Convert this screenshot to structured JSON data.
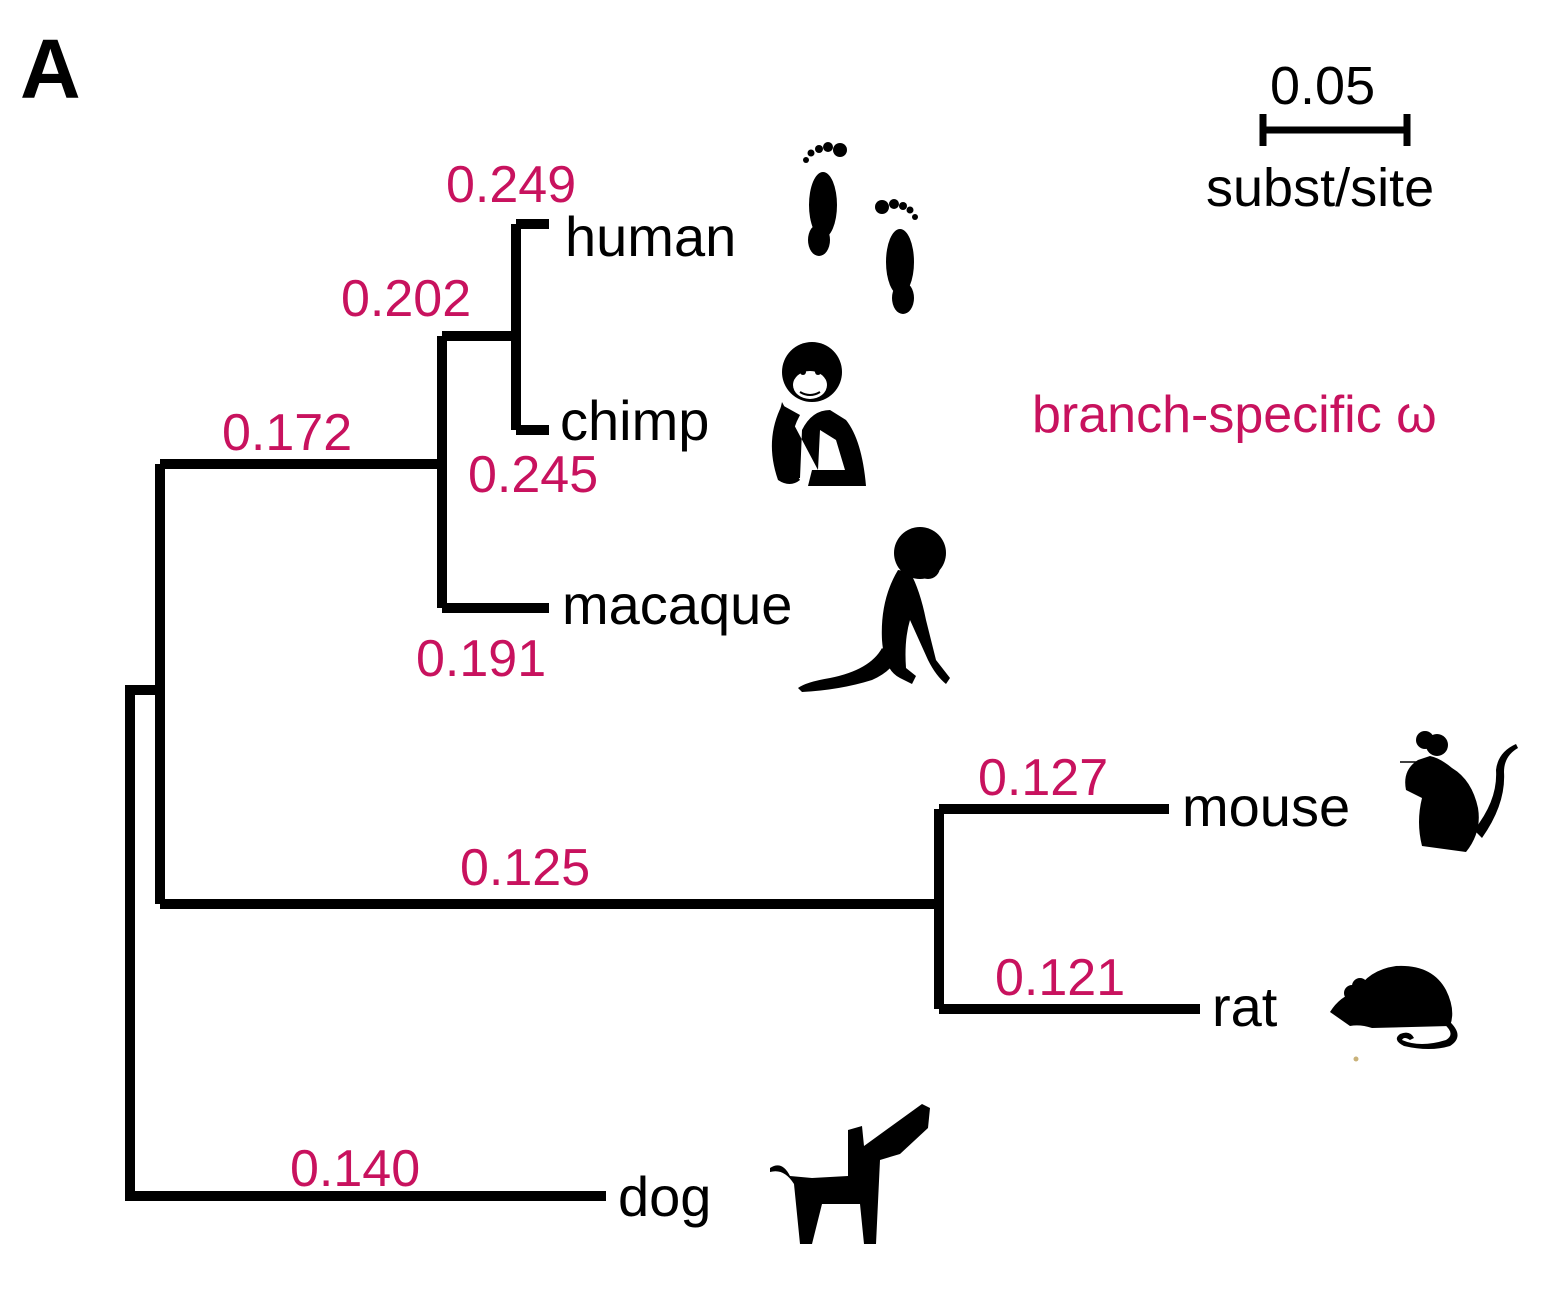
{
  "figure": {
    "panel_label": "A",
    "accent_color": "#c8125e",
    "legend": "branch-specific ω",
    "scale_bar": {
      "value": "0.05",
      "unit": "subst/site"
    }
  },
  "tree": {
    "taxa": [
      {
        "id": "human",
        "label": "human",
        "icon": "footprints-icon"
      },
      {
        "id": "chimp",
        "label": "chimp",
        "icon": "chimpanzee-icon"
      },
      {
        "id": "macaque",
        "label": "macaque",
        "icon": "macaque-icon"
      },
      {
        "id": "mouse",
        "label": "mouse",
        "icon": "mouse-icon"
      },
      {
        "id": "rat",
        "label": "rat",
        "icon": "rat-icon"
      },
      {
        "id": "dog",
        "label": "dog",
        "icon": "dog-icon"
      }
    ],
    "branch_omega": {
      "human": "0.249",
      "human_chimp": "0.202",
      "chimp": "0.245",
      "primates": "0.172",
      "macaque": "0.191",
      "rodents": "0.125",
      "mouse": "0.127",
      "rat": "0.121",
      "dog": "0.140"
    }
  }
}
